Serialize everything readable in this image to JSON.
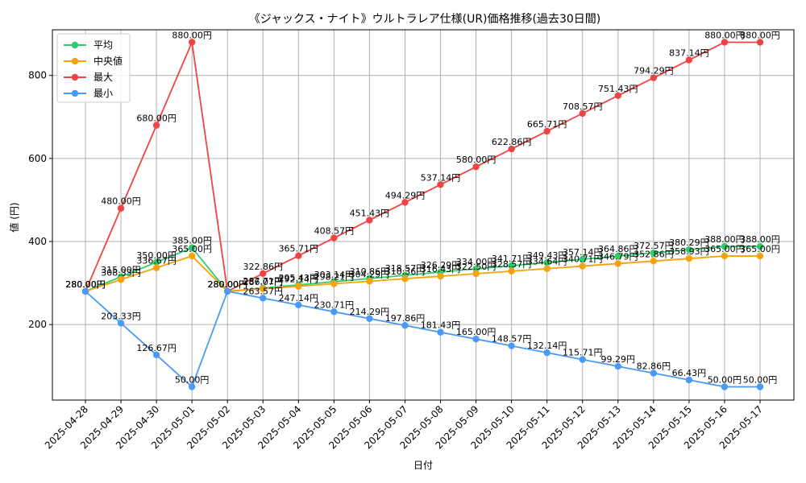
{
  "chart_data": {
    "type": "line",
    "title": "《ジャックス・ナイト》ウルトラレア仕様(UR)価格推移(過去30日間)",
    "xlabel": "日付",
    "ylabel": "値 (円)",
    "ylim": [
      18,
      910
    ],
    "yticks": [
      200,
      400,
      600,
      800
    ],
    "grid": true,
    "legend_position": "top-left",
    "label_suffix": "円",
    "categories": [
      "2025-04-28",
      "2025-04-29",
      "2025-04-30",
      "2025-05-01",
      "2025-05-02",
      "2025-05-03",
      "2025-05-04",
      "2025-05-05",
      "2025-05-06",
      "2025-05-07",
      "2025-05-08",
      "2025-05-09",
      "2025-05-10",
      "2025-05-11",
      "2025-05-12",
      "2025-05-13",
      "2025-05-14",
      "2025-05-15",
      "2025-05-16",
      "2025-05-17"
    ],
    "series": [
      {
        "name": "平均",
        "color": "#2ecc71",
        "labels": [
          "280.00",
          "315.00",
          "350.00",
          "385.00",
          "280.00",
          "287.71",
          "295.43",
          "303.14",
          "310.86",
          "318.57",
          "326.29",
          "334.00",
          "341.71",
          "349.43",
          "357.14",
          "364.86",
          "372.57",
          "380.29",
          "388.00",
          "388.00"
        ],
        "values": [
          280.0,
          315.0,
          350.0,
          385.0,
          280.0,
          287.71,
          295.43,
          303.14,
          310.86,
          318.57,
          326.29,
          334.0,
          341.71,
          349.43,
          357.14,
          364.86,
          372.57,
          380.29,
          388.0,
          388.0
        ]
      },
      {
        "name": "中央値",
        "color": "#f5a20b",
        "labels": [
          "280.00",
          "308.33",
          "336.67",
          "365.00",
          "280.00",
          "286.07",
          "292.14",
          "298.21",
          "304.29",
          "310.36",
          "316.43",
          "322.50",
          "328.57",
          "334.64",
          "340.71",
          "346.79",
          "352.86",
          "358.93",
          "365.00",
          "365.00"
        ],
        "values": [
          280.0,
          308.33,
          336.67,
          365.0,
          280.0,
          286.07,
          292.14,
          298.21,
          304.29,
          310.36,
          316.43,
          322.5,
          328.57,
          334.64,
          340.71,
          346.79,
          352.86,
          358.93,
          365.0,
          365.0
        ]
      },
      {
        "name": "最大",
        "color": "#ef4444",
        "labels": [
          "280.00",
          "480.00",
          "680.00",
          "880.00",
          "280.00",
          "322.86",
          "365.71",
          "408.57",
          "451.43",
          "494.29",
          "537.14",
          "580.00",
          "622.86",
          "665.71",
          "708.57",
          "751.43",
          "794.29",
          "837.14",
          "880.00",
          "880.00"
        ],
        "values": [
          280.0,
          480.0,
          680.0,
          880.0,
          280.0,
          322.86,
          365.71,
          408.57,
          451.43,
          494.29,
          537.14,
          580.0,
          622.86,
          665.71,
          708.57,
          751.43,
          794.29,
          837.14,
          880.0,
          880.0
        ]
      },
      {
        "name": "最小",
        "color": "#4a9af5",
        "labels": [
          "280.00",
          "203.33",
          "126.67",
          "50.00",
          "280.00",
          "263.57",
          "247.14",
          "230.71",
          "214.29",
          "197.86",
          "181.43",
          "165.00",
          "148.57",
          "132.14",
          "115.71",
          "99.29",
          "82.86",
          "66.43",
          "50.00",
          "50.00"
        ],
        "values": [
          280.0,
          203.33,
          126.67,
          50.0,
          280.0,
          263.57,
          247.14,
          230.71,
          214.29,
          197.86,
          181.43,
          165.0,
          148.57,
          132.14,
          115.71,
          99.29,
          82.86,
          66.43,
          50.0,
          50.0
        ]
      }
    ]
  }
}
